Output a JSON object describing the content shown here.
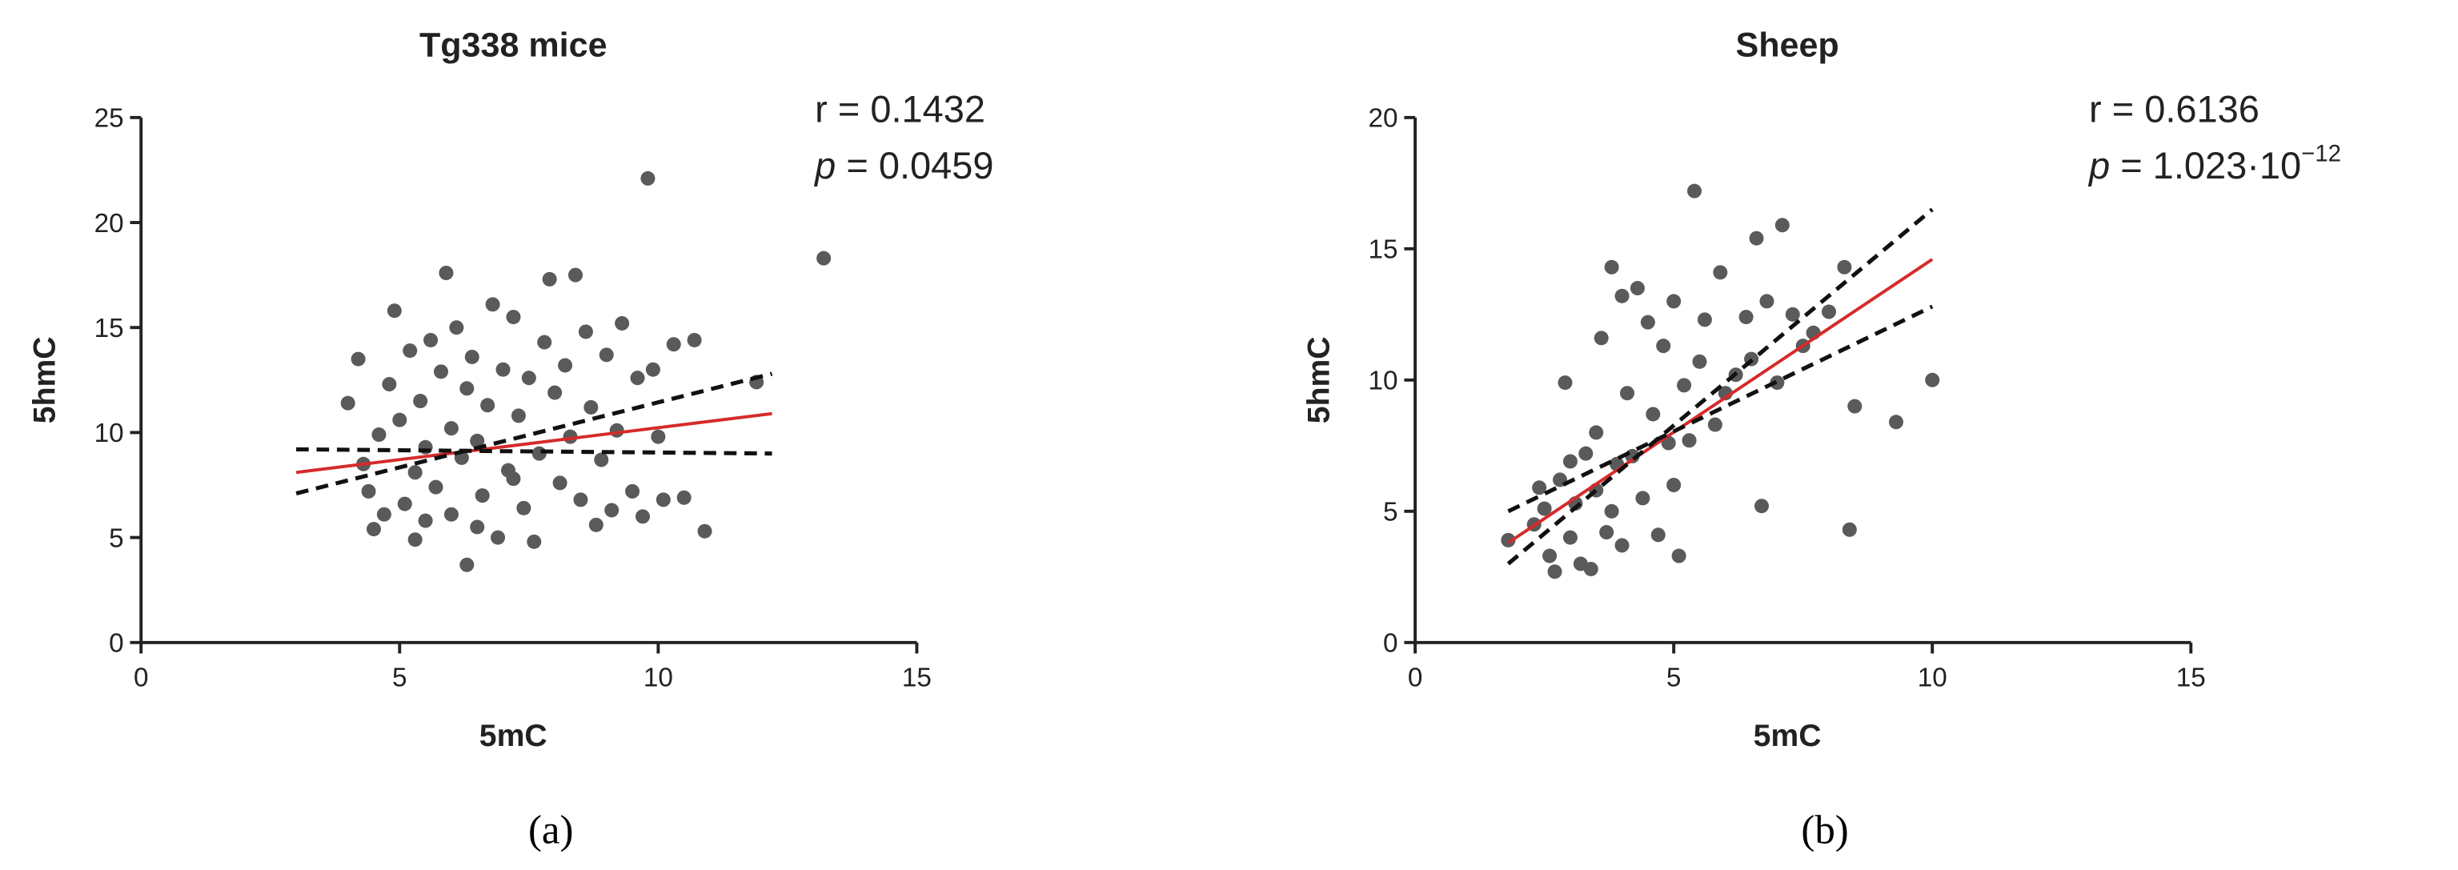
{
  "chart_data": [
    {
      "type": "scatter",
      "title": "Tg338 mice",
      "x_label": "5mC",
      "y_label": "5hmC",
      "r_text": "r = 0.1432",
      "p_symbol": "p",
      "p_text": " = 0.0459",
      "caption": "(a)",
      "xlim": [
        0,
        15
      ],
      "xticks": [
        0,
        5,
        10,
        15
      ],
      "ylim": [
        0,
        25
      ],
      "yticks": [
        0,
        5,
        10,
        15,
        20,
        25
      ],
      "color": "#5a5a5a",
      "x": [
        4.0,
        4.2,
        4.3,
        4.4,
        4.5,
        4.6,
        4.8,
        4.9,
        5.0,
        5.1,
        5.2,
        5.3,
        5.4,
        5.5,
        5.5,
        5.6,
        5.7,
        5.8,
        5.9,
        6.0,
        6.0,
        6.1,
        6.2,
        6.3,
        6.3,
        6.4,
        6.5,
        6.6,
        6.7,
        6.8,
        6.9,
        7.0,
        7.1,
        7.2,
        7.3,
        7.4,
        7.5,
        7.6,
        7.7,
        7.8,
        7.9,
        8.0,
        8.1,
        8.2,
        8.3,
        8.4,
        8.5,
        8.6,
        8.7,
        8.8,
        8.9,
        9.0,
        9.1,
        9.2,
        9.3,
        9.5,
        9.6,
        9.7,
        9.8,
        9.9,
        10.0,
        10.1,
        10.3,
        10.5,
        10.7,
        10.9,
        11.9,
        13.2,
        5.3,
        6.5,
        7.2,
        4.7
      ],
      "values": [
        11.4,
        13.5,
        8.5,
        7.2,
        5.4,
        9.9,
        12.3,
        15.8,
        10.6,
        6.6,
        13.9,
        8.1,
        11.5,
        5.8,
        9.3,
        14.4,
        7.4,
        12.9,
        17.6,
        10.2,
        6.1,
        15.0,
        8.8,
        3.7,
        12.1,
        13.6,
        9.6,
        7.0,
        11.3,
        16.1,
        5.0,
        13.0,
        8.2,
        15.5,
        10.8,
        6.4,
        12.6,
        4.8,
        9.0,
        14.3,
        17.3,
        11.9,
        7.6,
        13.2,
        9.8,
        17.5,
        6.8,
        14.8,
        11.2,
        5.6,
        8.7,
        13.7,
        6.3,
        10.1,
        15.2,
        7.2,
        12.6,
        6.0,
        22.1,
        13.0,
        9.8,
        6.8,
        14.2,
        6.9,
        14.4,
        5.3,
        12.4,
        18.3,
        4.9,
        5.5,
        7.8,
        6.1
      ],
      "fits": [
        {
          "color": "#d62a2a",
          "dashed": false,
          "x": [
            3,
            12.2
          ],
          "values": [
            8.1,
            10.9
          ]
        },
        {
          "color": "#111111",
          "dashed": true,
          "x": [
            3,
            12.2
          ],
          "values": [
            7.1,
            12.8
          ]
        },
        {
          "color": "#111111",
          "dashed": true,
          "x": [
            3,
            12.2
          ],
          "values": [
            9.2,
            9.0
          ]
        }
      ]
    },
    {
      "type": "scatter",
      "title": "Sheep",
      "x_label": "5mC",
      "y_label": "5hmC",
      "r_text": "r = 0.6136",
      "p_symbol": "p",
      "p_text": " = 1.023·10",
      "p_exponent": "−12",
      "caption": "(b)",
      "xlim": [
        0,
        15
      ],
      "xticks": [
        0,
        5,
        10,
        15
      ],
      "ylim": [
        0,
        20
      ],
      "yticks": [
        0,
        5,
        10,
        15,
        20
      ],
      "color": "#5a5a5a",
      "x": [
        1.8,
        2.3,
        2.5,
        2.6,
        2.7,
        2.8,
        2.9,
        3.0,
        3.1,
        3.2,
        3.3,
        3.4,
        3.5,
        3.5,
        3.6,
        3.7,
        3.8,
        3.9,
        4.0,
        4.0,
        4.1,
        4.2,
        4.3,
        4.4,
        4.5,
        4.6,
        4.7,
        4.8,
        4.9,
        5.0,
        5.0,
        5.1,
        5.2,
        5.3,
        5.4,
        5.5,
        5.6,
        5.8,
        5.9,
        6.0,
        6.2,
        6.4,
        6.5,
        6.6,
        6.7,
        6.8,
        7.0,
        7.1,
        7.3,
        7.5,
        7.7,
        8.0,
        8.3,
        8.4,
        8.5,
        9.3,
        10.0,
        2.4,
        3.0,
        3.8
      ],
      "values": [
        3.9,
        4.5,
        5.1,
        3.3,
        2.7,
        6.2,
        9.9,
        4.0,
        5.3,
        3.0,
        7.2,
        2.8,
        8.0,
        5.8,
        11.6,
        4.2,
        14.3,
        6.8,
        13.2,
        3.7,
        9.5,
        7.1,
        13.5,
        5.5,
        12.2,
        8.7,
        4.1,
        11.3,
        7.6,
        6.0,
        13.0,
        3.3,
        9.8,
        7.7,
        17.2,
        10.7,
        12.3,
        8.3,
        14.1,
        9.5,
        10.2,
        12.4,
        10.8,
        15.4,
        5.2,
        13.0,
        9.9,
        15.9,
        12.5,
        11.3,
        11.8,
        12.6,
        14.3,
        4.3,
        9.0,
        8.4,
        10.0,
        5.9,
        6.9,
        5.0
      ],
      "fits": [
        {
          "color": "#d62a2a",
          "dashed": false,
          "x": [
            1.8,
            10
          ],
          "values": [
            3.8,
            14.6
          ]
        },
        {
          "color": "#111111",
          "dashed": true,
          "x": [
            1.8,
            10
          ],
          "values": [
            3.0,
            16.5
          ]
        },
        {
          "color": "#111111",
          "dashed": true,
          "x": [
            1.8,
            10
          ],
          "values": [
            5.0,
            12.8
          ]
        }
      ]
    }
  ]
}
